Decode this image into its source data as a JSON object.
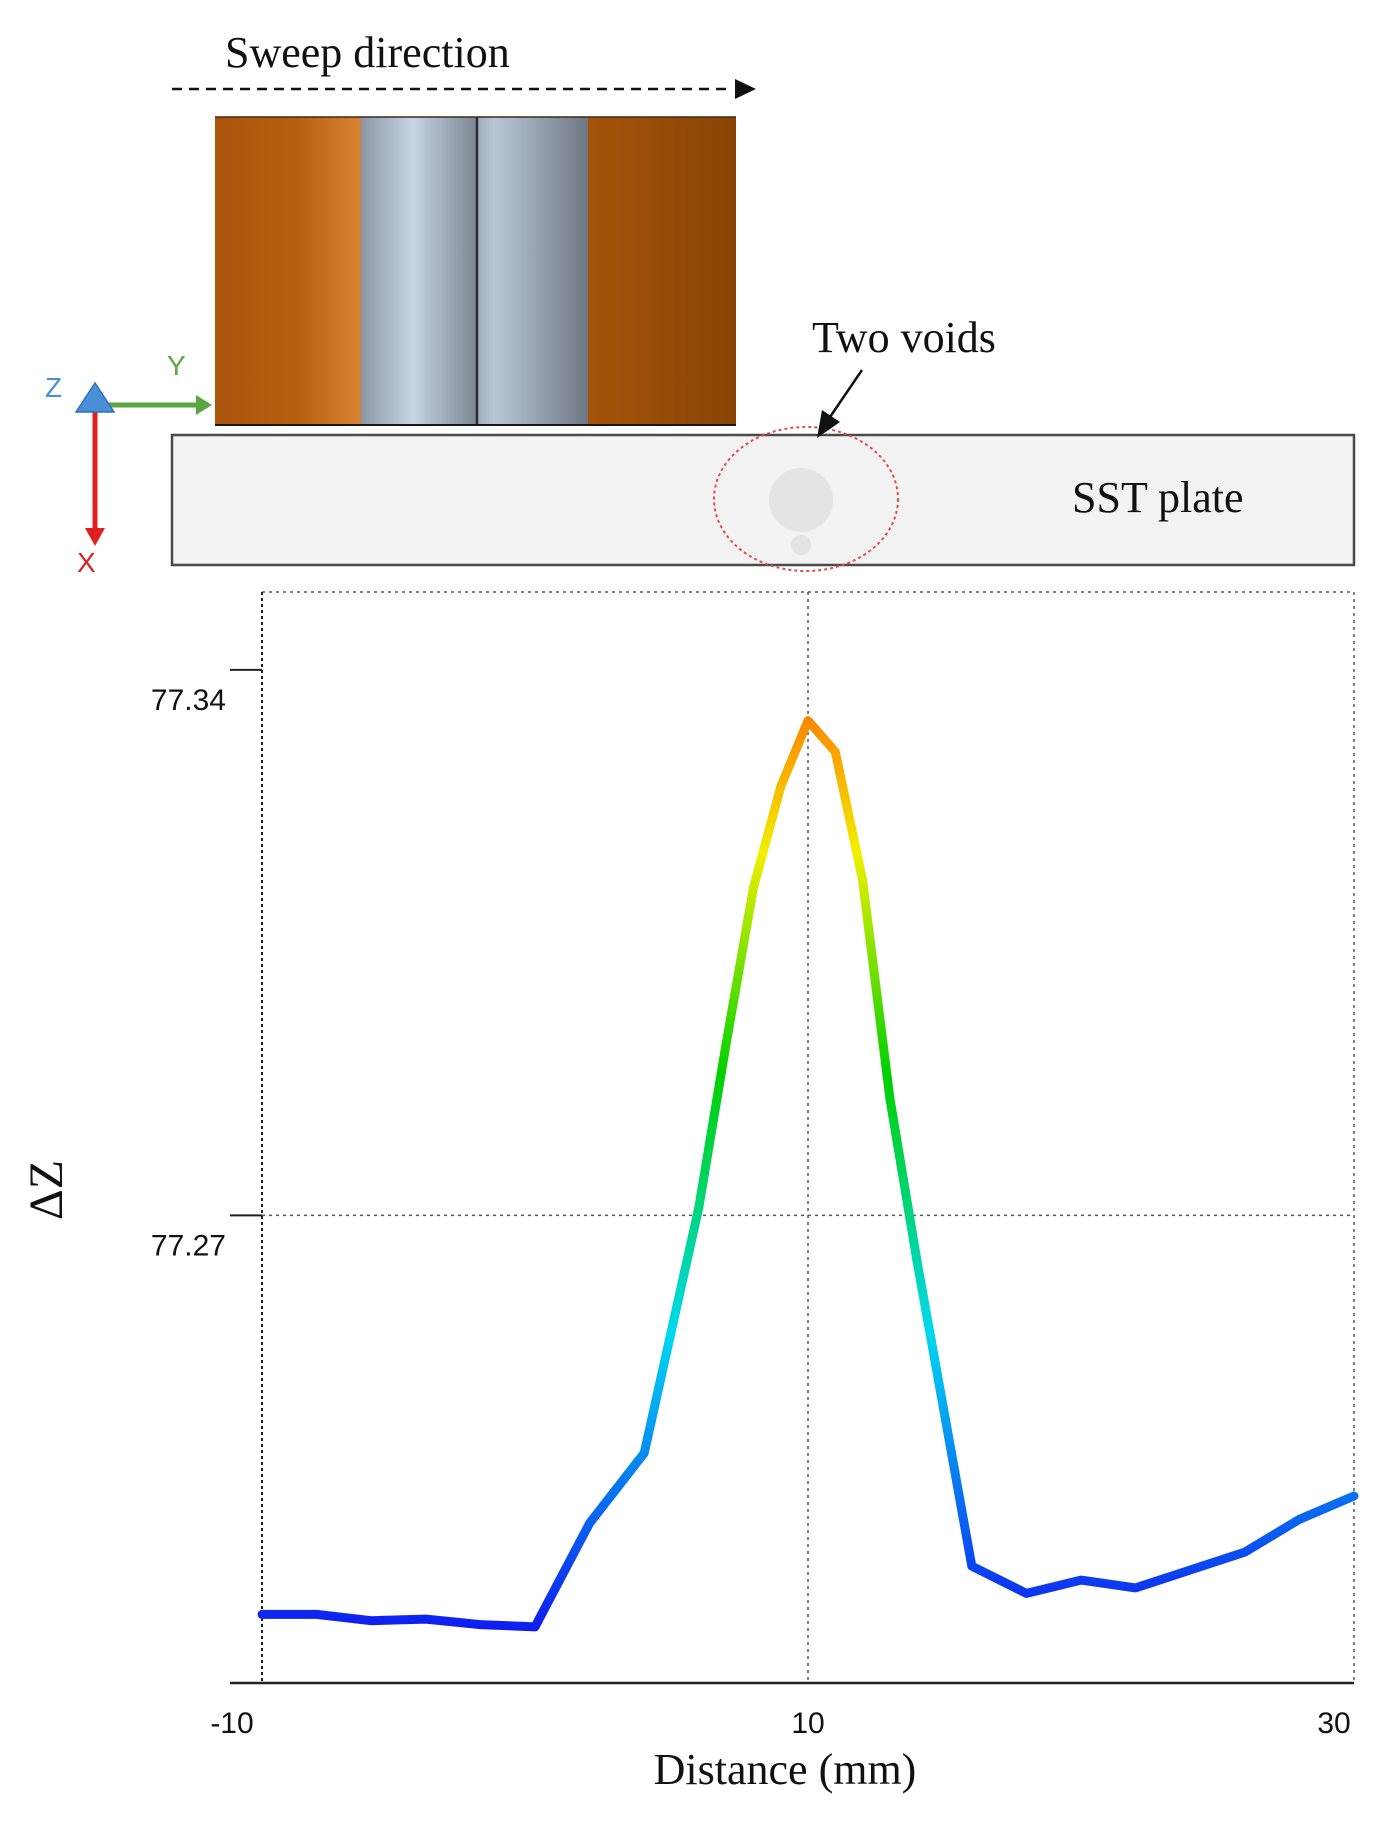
{
  "diagram": {
    "sweep_label": "Sweep direction",
    "voids_label": "Two voids",
    "plate_label": "SST plate",
    "axes": {
      "z": "Z",
      "y": "Y",
      "x": "X"
    },
    "colors": {
      "copper_light": "#D4782A",
      "copper_dark": "#8B4706",
      "steel_light": "#C4D4E2",
      "steel_dark": "#6E7884",
      "plate_fill": "#F2F2F2",
      "void_fill": "#E4E4E4",
      "circle": "#E84B4B",
      "axis_z": "#4A8FD6",
      "axis_y": "#5BA642",
      "axis_x": "#E02020"
    }
  },
  "chart_data": {
    "type": "line",
    "title": "",
    "xlabel": "Distance (mm)",
    "ylabel": "ΔZ",
    "xlim": [
      -10,
      30
    ],
    "ylim": [
      77.21,
      77.35
    ],
    "x_ticks": [
      "-10",
      "10",
      "30"
    ],
    "y_ticks": [
      "77.34",
      "77.27"
    ],
    "grid": true,
    "colormap": [
      "#1010F0",
      "#00D8F0",
      "#00D000",
      "#F0F000",
      "#FF7000"
    ],
    "series": [
      {
        "x": [
          -10,
          -8,
          -6,
          -4,
          -2,
          0,
          2,
          4,
          6,
          7,
          8,
          9,
          10,
          11,
          12,
          13,
          14,
          16,
          18,
          20,
          22,
          24,
          26,
          28,
          30
        ],
        "y": [
          77.2188,
          77.2188,
          77.218,
          77.2182,
          77.2175,
          77.2172,
          77.2305,
          77.2395,
          77.271,
          77.292,
          77.312,
          77.325,
          77.3335,
          77.3295,
          77.313,
          77.285,
          77.264,
          77.225,
          77.2215,
          77.2232,
          77.2222,
          77.2245,
          77.2268,
          77.231,
          77.234
        ]
      }
    ]
  }
}
